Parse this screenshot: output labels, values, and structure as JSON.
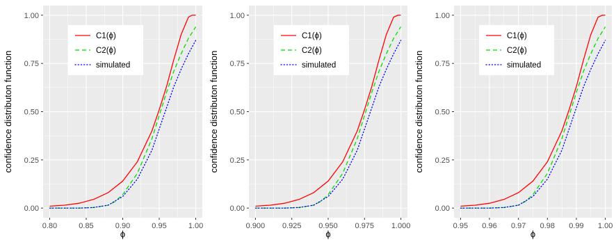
{
  "chart_data": [
    {
      "type": "line",
      "xlabel": "ϕ",
      "ylabel": "confidence distributon function",
      "xlim": [
        0.8,
        1.0
      ],
      "ylim": [
        0,
        1
      ],
      "xticks": [
        "0.80",
        "0.85",
        "0.90",
        "0.95",
        "1.00"
      ],
      "yticks": [
        "0.00",
        "0.25",
        "0.50",
        "0.75",
        "1.00"
      ],
      "grid": true,
      "legend": "top-left",
      "series": [
        {
          "name": "C1(ϕ)",
          "color": "#ff0000",
          "dash": "solid",
          "x": [
            0.8,
            0.82,
            0.84,
            0.86,
            0.88,
            0.9,
            0.92,
            0.94,
            0.95,
            0.96,
            0.97,
            0.98,
            0.99,
            0.995,
            1.0
          ],
          "y": [
            0.01,
            0.015,
            0.025,
            0.045,
            0.08,
            0.14,
            0.24,
            0.4,
            0.51,
            0.63,
            0.77,
            0.9,
            0.99,
            1.0,
            1.0
          ]
        },
        {
          "name": "C2(ϕ)",
          "color": "#00dd00",
          "dash": "dashed",
          "x": [
            0.8,
            0.84,
            0.86,
            0.88,
            0.89,
            0.9,
            0.92,
            0.94,
            0.95,
            0.96,
            0.97,
            0.98,
            0.99,
            1.0
          ],
          "y": [
            0.0,
            0.0,
            0.003,
            0.015,
            0.035,
            0.07,
            0.18,
            0.36,
            0.48,
            0.6,
            0.71,
            0.8,
            0.88,
            0.94
          ]
        },
        {
          "name": "simulated",
          "color": "#0000ff",
          "dash": "dotted",
          "x": [
            0.8,
            0.84,
            0.86,
            0.88,
            0.9,
            0.92,
            0.94,
            0.95,
            0.96,
            0.97,
            0.98,
            0.99,
            1.0
          ],
          "y": [
            0.0,
            0.0,
            0.003,
            0.015,
            0.06,
            0.15,
            0.3,
            0.41,
            0.52,
            0.63,
            0.72,
            0.8,
            0.87
          ]
        }
      ]
    },
    {
      "type": "line",
      "xlabel": "ϕ",
      "ylabel": "confidence distributon function",
      "xlim": [
        0.9,
        1.0
      ],
      "ylim": [
        0,
        1
      ],
      "xticks": [
        "0.900",
        "0.925",
        "0.950",
        "0.975",
        "1.000"
      ],
      "yticks": [
        "0.00",
        "0.25",
        "0.50",
        "0.75",
        "1.00"
      ],
      "grid": true,
      "legend": "top-left",
      "series": [
        {
          "name": "C1(ϕ)",
          "color": "#ff0000",
          "dash": "solid",
          "x": [
            0.9,
            0.91,
            0.92,
            0.93,
            0.94,
            0.95,
            0.96,
            0.97,
            0.975,
            0.98,
            0.985,
            0.99,
            0.995,
            0.998,
            1.0
          ],
          "y": [
            0.01,
            0.015,
            0.025,
            0.045,
            0.08,
            0.14,
            0.24,
            0.4,
            0.51,
            0.63,
            0.77,
            0.9,
            0.99,
            1.0,
            1.0
          ]
        },
        {
          "name": "C2(ϕ)",
          "color": "#00dd00",
          "dash": "dashed",
          "x": [
            0.9,
            0.92,
            0.93,
            0.94,
            0.945,
            0.95,
            0.96,
            0.97,
            0.975,
            0.98,
            0.985,
            0.99,
            0.995,
            1.0
          ],
          "y": [
            0.0,
            0.0,
            0.003,
            0.015,
            0.035,
            0.07,
            0.18,
            0.36,
            0.48,
            0.6,
            0.71,
            0.8,
            0.88,
            0.94
          ]
        },
        {
          "name": "simulated",
          "color": "#0000ff",
          "dash": "dotted",
          "x": [
            0.9,
            0.92,
            0.93,
            0.94,
            0.95,
            0.96,
            0.97,
            0.975,
            0.98,
            0.985,
            0.99,
            0.995,
            1.0
          ],
          "y": [
            0.0,
            0.0,
            0.003,
            0.015,
            0.06,
            0.15,
            0.3,
            0.41,
            0.52,
            0.63,
            0.72,
            0.8,
            0.87
          ]
        }
      ]
    },
    {
      "type": "line",
      "xlabel": "ϕ",
      "ylabel": "confidence distributon function",
      "xlim": [
        0.95,
        1.0
      ],
      "ylim": [
        0,
        1
      ],
      "xticks": [
        "0.95",
        "0.96",
        "0.97",
        "0.98",
        "0.99",
        "1.00"
      ],
      "yticks": [
        "0.00",
        "0.25",
        "0.50",
        "0.75",
        "1.00"
      ],
      "grid": true,
      "legend": "top-left",
      "series": [
        {
          "name": "C1(ϕ)",
          "color": "#ff0000",
          "dash": "solid",
          "x": [
            0.95,
            0.955,
            0.96,
            0.965,
            0.97,
            0.975,
            0.98,
            0.985,
            0.9875,
            0.99,
            0.9925,
            0.995,
            0.9975,
            0.999,
            1.0
          ],
          "y": [
            0.01,
            0.015,
            0.025,
            0.045,
            0.08,
            0.14,
            0.24,
            0.4,
            0.51,
            0.63,
            0.77,
            0.9,
            0.99,
            1.0,
            1.0
          ]
        },
        {
          "name": "C2(ϕ)",
          "color": "#00dd00",
          "dash": "dashed",
          "x": [
            0.95,
            0.96,
            0.965,
            0.97,
            0.9725,
            0.975,
            0.98,
            0.985,
            0.9875,
            0.99,
            0.9925,
            0.995,
            0.9975,
            1.0
          ],
          "y": [
            0.0,
            0.0,
            0.003,
            0.015,
            0.035,
            0.07,
            0.18,
            0.36,
            0.48,
            0.6,
            0.71,
            0.8,
            0.88,
            0.94
          ]
        },
        {
          "name": "simulated",
          "color": "#0000ff",
          "dash": "dotted",
          "x": [
            0.95,
            0.96,
            0.965,
            0.97,
            0.975,
            0.98,
            0.985,
            0.9875,
            0.99,
            0.9925,
            0.995,
            0.9975,
            1.0
          ],
          "y": [
            0.0,
            0.0,
            0.003,
            0.015,
            0.06,
            0.15,
            0.3,
            0.41,
            0.52,
            0.63,
            0.72,
            0.8,
            0.87
          ]
        }
      ]
    }
  ],
  "colors": {
    "panel_bg": "#ebebeb",
    "grid": "#ffffff"
  }
}
